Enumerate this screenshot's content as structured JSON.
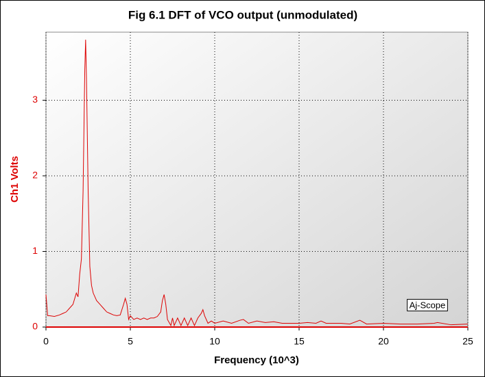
{
  "chart_data": {
    "type": "line",
    "title": "Fig 6.1 DFT of VCO output (unmodulated)",
    "x_label": "Frequency (10^3)",
    "y_label": "Ch1 Volts",
    "annotation": "Aj-Scope",
    "x": [
      0,
      0.1,
      0.2,
      0.5,
      0.8,
      1.0,
      1.2,
      1.4,
      1.6,
      1.8,
      1.9,
      2.0,
      2.1,
      2.2,
      2.3,
      2.35,
      2.4,
      2.5,
      2.6,
      2.7,
      2.8,
      3.0,
      3.2,
      3.4,
      3.6,
      3.8,
      4.0,
      4.2,
      4.4,
      4.6,
      4.7,
      4.8,
      4.9,
      5.0,
      5.2,
      5.4,
      5.6,
      5.8,
      6.0,
      6.2,
      6.4,
      6.6,
      6.8,
      6.9,
      7.0,
      7.1,
      7.2,
      7.4,
      7.5,
      7.6,
      7.8,
      8.0,
      8.2,
      8.4,
      8.6,
      8.8,
      9.0,
      9.2,
      9.3,
      9.4,
      9.6,
      9.8,
      10,
      10.5,
      11,
      11.5,
      11.7,
      12,
      12.5,
      13,
      13.5,
      14,
      14.5,
      15,
      15.5,
      16,
      16.3,
      16.6,
      17,
      17.5,
      18,
      18.6,
      19,
      20,
      21,
      22,
      23,
      23.2,
      24,
      25
    ],
    "series": [
      {
        "name": "Ch1",
        "color": "#dd0000",
        "values": [
          0.43,
          0.15,
          0.15,
          0.14,
          0.16,
          0.18,
          0.2,
          0.25,
          0.3,
          0.45,
          0.4,
          0.7,
          0.9,
          1.8,
          3.4,
          3.8,
          3.3,
          1.8,
          0.8,
          0.55,
          0.45,
          0.35,
          0.3,
          0.25,
          0.2,
          0.18,
          0.16,
          0.15,
          0.16,
          0.3,
          0.38,
          0.3,
          0.1,
          0.15,
          0.1,
          0.12,
          0.1,
          0.12,
          0.1,
          0.12,
          0.12,
          0.14,
          0.2,
          0.35,
          0.43,
          0.3,
          0.1,
          0.02,
          0.12,
          0.02,
          0.12,
          0.02,
          0.12,
          0.02,
          0.12,
          0.02,
          0.12,
          0.18,
          0.23,
          0.15,
          0.05,
          0.08,
          0.05,
          0.08,
          0.05,
          0.09,
          0.1,
          0.05,
          0.08,
          0.06,
          0.07,
          0.05,
          0.05,
          0.05,
          0.06,
          0.05,
          0.08,
          0.05,
          0.05,
          0.05,
          0.04,
          0.09,
          0.04,
          0.05,
          0.04,
          0.04,
          0.05,
          0.06,
          0.03,
          0.04
        ]
      }
    ],
    "xlim": [
      0,
      25
    ],
    "xticks": [
      0,
      5,
      10,
      15,
      20,
      25
    ],
    "ylim": [
      0,
      3.9
    ],
    "yticks": [
      0,
      1,
      2,
      3
    ],
    "grid": true
  }
}
